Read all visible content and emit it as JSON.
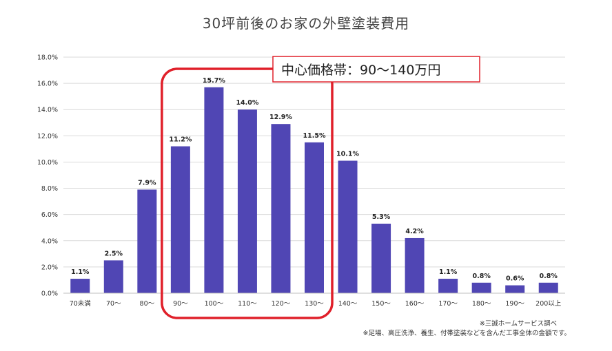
{
  "chart_data": {
    "type": "bar",
    "title": "30坪前後のお家の外壁塗装費用",
    "categories": [
      "70未満",
      "70〜",
      "80〜",
      "90〜",
      "100〜",
      "110〜",
      "120〜",
      "130〜",
      "140〜",
      "150〜",
      "160〜",
      "170〜",
      "180〜",
      "190〜",
      "200以上"
    ],
    "values": [
      1.1,
      2.5,
      7.9,
      11.2,
      15.7,
      14.0,
      12.9,
      11.5,
      10.1,
      5.3,
      4.2,
      1.1,
      0.8,
      0.6,
      0.8
    ],
    "value_labels": [
      "1.1%",
      "2.5%",
      "7.9%",
      "11.2%",
      "15.7%",
      "14.0%",
      "12.9%",
      "11.5%",
      "10.1%",
      "5.3%",
      "4.2%",
      "1.1%",
      "0.8%",
      "0.6%",
      "0.8%"
    ],
    "ylim": [
      0,
      18
    ],
    "yticks": [
      0,
      2,
      4,
      6,
      8,
      10,
      12,
      14,
      16,
      18
    ],
    "ytick_labels": [
      "0.0%",
      "2.0%",
      "4.0%",
      "6.0%",
      "8.0%",
      "10.0%",
      "12.0%",
      "14.0%",
      "16.0%",
      "18.0%"
    ],
    "grid": true,
    "bar_color": "#5046b4",
    "highlight": {
      "label": "中心価格帯：90〜140万円",
      "categories": [
        "90〜",
        "100〜",
        "110〜",
        "120〜",
        "130〜"
      ],
      "color": "#e0202a"
    }
  },
  "notes": {
    "source": "※三誠ホームサービス調べ",
    "disclaimer": "※足場、高圧洗浄、養生、付帯塗装などを含んだ工事全体の金額です。"
  }
}
